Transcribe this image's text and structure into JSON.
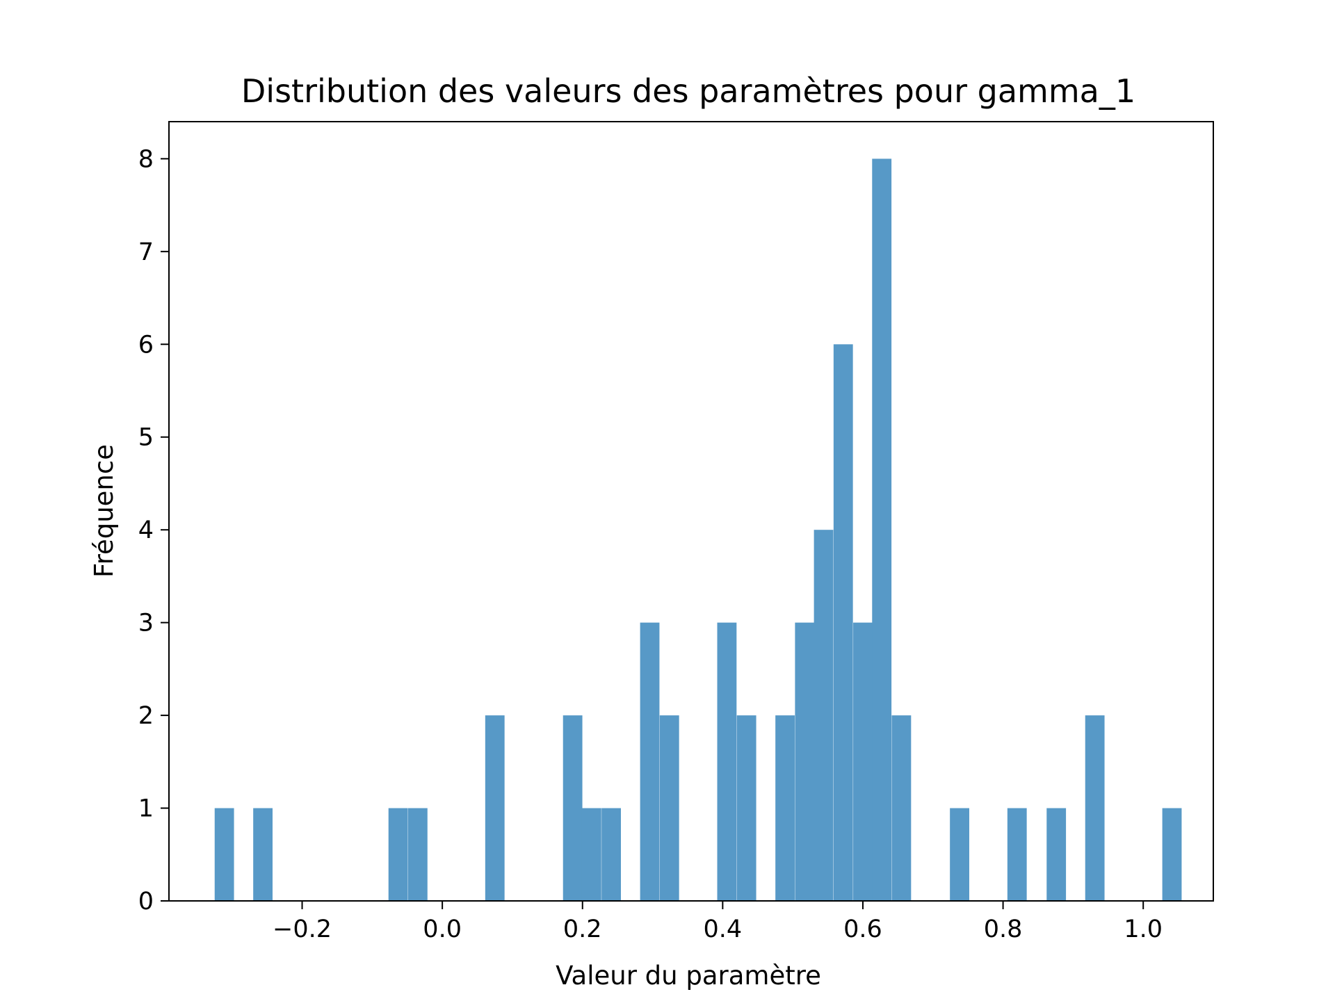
{
  "chart_data": {
    "type": "bar",
    "title": "Distribution des valeurs des paramètres pour gamma_1",
    "xlabel": "Valeur du paramètre",
    "ylabel": "Fréquence",
    "bin_width": 0.0276,
    "xlim": [
      -0.39,
      1.1
    ],
    "ylim": [
      0,
      8.4
    ],
    "xticks": [
      -0.2,
      0.0,
      0.2,
      0.4,
      0.6,
      0.8,
      1.0
    ],
    "xtick_labels": [
      "−0.2",
      "0.0",
      "0.2",
      "0.4",
      "0.6",
      "0.8",
      "1.0"
    ],
    "yticks": [
      0,
      1,
      2,
      3,
      4,
      5,
      6,
      7,
      8
    ],
    "ytick_labels": [
      "0",
      "1",
      "2",
      "3",
      "4",
      "5",
      "6",
      "7",
      "8"
    ],
    "bar_color": "#5799c7",
    "grid": false,
    "bins": [
      {
        "x": -0.311,
        "count": 1
      },
      {
        "x": -0.256,
        "count": 1
      },
      {
        "x": -0.063,
        "count": 1
      },
      {
        "x": -0.035,
        "count": 1
      },
      {
        "x": 0.075,
        "count": 2
      },
      {
        "x": 0.186,
        "count": 2
      },
      {
        "x": 0.213,
        "count": 1
      },
      {
        "x": 0.241,
        "count": 1
      },
      {
        "x": 0.296,
        "count": 3
      },
      {
        "x": 0.324,
        "count": 2
      },
      {
        "x": 0.406,
        "count": 3
      },
      {
        "x": 0.434,
        "count": 2
      },
      {
        "x": 0.489,
        "count": 2
      },
      {
        "x": 0.517,
        "count": 3
      },
      {
        "x": 0.544,
        "count": 4
      },
      {
        "x": 0.572,
        "count": 6
      },
      {
        "x": 0.6,
        "count": 3
      },
      {
        "x": 0.627,
        "count": 8
      },
      {
        "x": 0.655,
        "count": 2
      },
      {
        "x": 0.738,
        "count": 1
      },
      {
        "x": 0.82,
        "count": 1
      },
      {
        "x": 0.876,
        "count": 1
      },
      {
        "x": 0.931,
        "count": 2
      },
      {
        "x": 1.041,
        "count": 1
      }
    ]
  }
}
